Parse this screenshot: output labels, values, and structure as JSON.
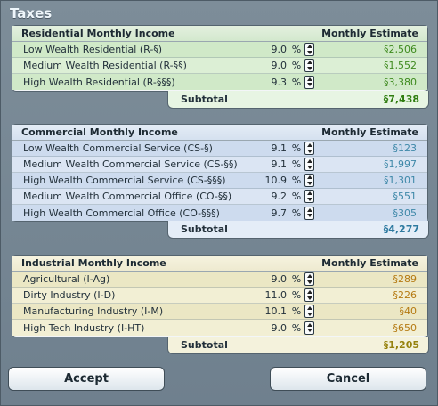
{
  "window": {
    "title": "Taxes"
  },
  "residential": {
    "header": "Residential Monthly Income",
    "estimate_header": "Monthly Estimate",
    "rows": [
      {
        "label": "Low Wealth Residential (R-§)",
        "rate": "9.0",
        "pct": "%",
        "estimate": "§2,506"
      },
      {
        "label": "Medium Wealth Residential (R-§§)",
        "rate": "9.0",
        "pct": "%",
        "estimate": "§1,552"
      },
      {
        "label": "High Wealth Residential (R-§§§)",
        "rate": "9.3",
        "pct": "%",
        "estimate": "§3,380"
      }
    ],
    "subtotal_label": "Subtotal",
    "subtotal_value": "§7,438"
  },
  "commercial": {
    "header": "Commercial Monthly Income",
    "estimate_header": "Monthly Estimate",
    "rows": [
      {
        "label": "Low Wealth Commercial Service (CS-§)",
        "rate": "9.1",
        "pct": "%",
        "estimate": "§123"
      },
      {
        "label": "Medium Wealth Commercial Service (CS-§§)",
        "rate": "9.1",
        "pct": "%",
        "estimate": "§1,997"
      },
      {
        "label": "High Wealth Commercial Service (CS-§§§)",
        "rate": "10.9",
        "pct": "%",
        "estimate": "§1,301"
      },
      {
        "label": "Medium Wealth Commercial Office (CO-§§)",
        "rate": "9.2",
        "pct": "%",
        "estimate": "§551"
      },
      {
        "label": "High Wealth Commercial Office (CO-§§§)",
        "rate": "9.7",
        "pct": "%",
        "estimate": "§305"
      }
    ],
    "subtotal_label": "Subtotal",
    "subtotal_value": "§4,277"
  },
  "industrial": {
    "header": "Industrial Monthly Income",
    "estimate_header": "Monthly Estimate",
    "rows": [
      {
        "label": "Agricultural (I-Ag)",
        "rate": "9.0",
        "pct": "%",
        "estimate": "§289"
      },
      {
        "label": "Dirty Industry (I-D)",
        "rate": "11.0",
        "pct": "%",
        "estimate": "§226"
      },
      {
        "label": "Manufacturing Industry (I-M)",
        "rate": "10.1",
        "pct": "%",
        "estimate": "§40"
      },
      {
        "label": "High Tech Industry (I-HT)",
        "rate": "9.0",
        "pct": "%",
        "estimate": "§650"
      }
    ],
    "subtotal_label": "Subtotal",
    "subtotal_value": "§1,205"
  },
  "buttons": {
    "accept": "Accept",
    "cancel": "Cancel"
  },
  "colors": {
    "residential": "#d0e9c8",
    "commercial": "#cddbee",
    "industrial": "#ebe7c4",
    "window_bg": "#6e7f8d"
  },
  "icons": {
    "spinner": "up-down-spinner-icon"
  }
}
